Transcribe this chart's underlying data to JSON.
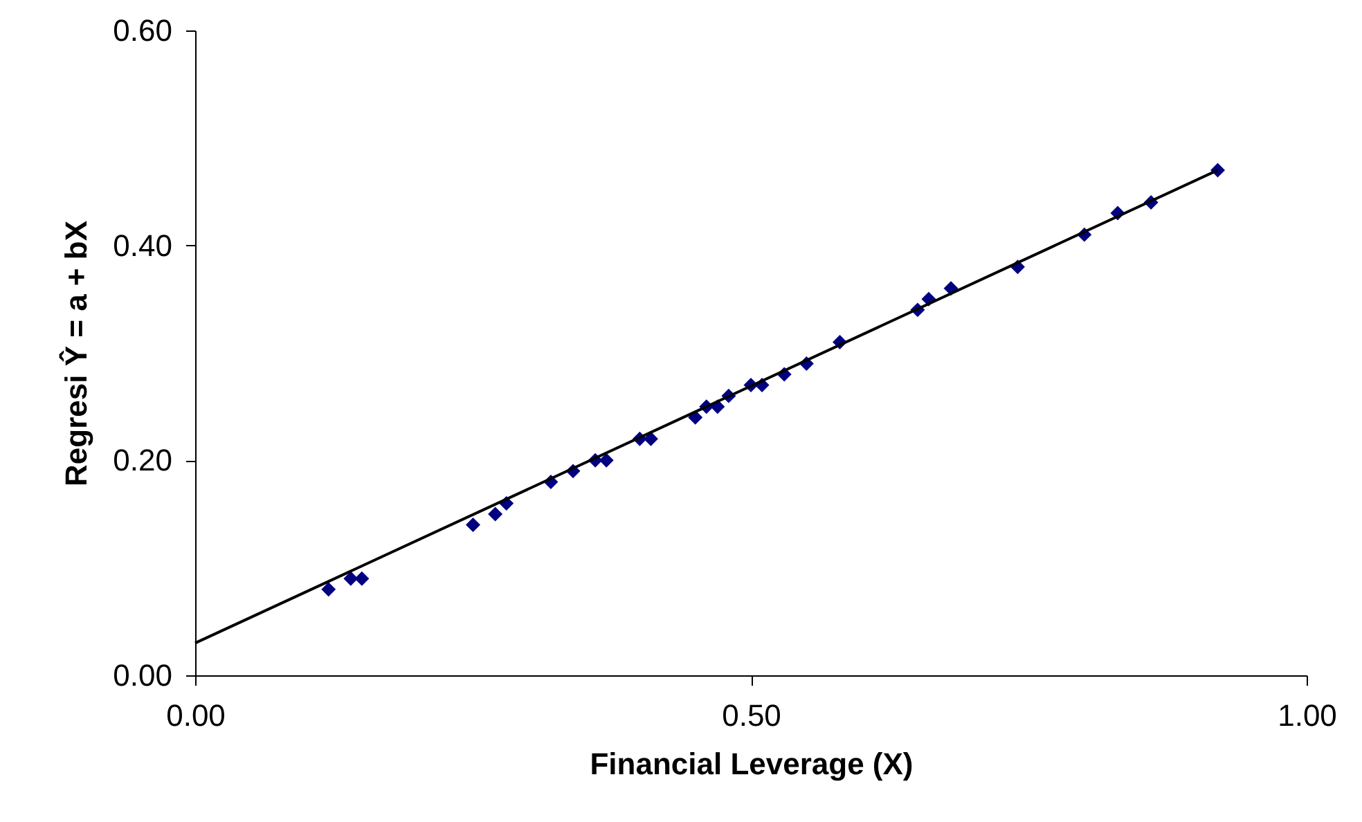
{
  "chart_data": {
    "type": "scatter",
    "xlabel": "Financial Leverage (X)",
    "ylabel": "Regresi Ŷ = a + bX",
    "xlim": [
      0,
      1
    ],
    "xticks": [
      {
        "value": 0,
        "label": "0.00"
      },
      {
        "value": 0.5,
        "label": "0.50"
      },
      {
        "value": 1,
        "label": "1.00"
      }
    ],
    "ylim": [
      0,
      0.6
    ],
    "yticks": [
      {
        "value": 0,
        "label": "0.00"
      },
      {
        "value": 0.2,
        "label": "0.20"
      },
      {
        "value": 0.4,
        "label": "0.40"
      },
      {
        "value": 0.6,
        "label": "0.60"
      }
    ],
    "grid": false,
    "series": [
      {
        "marker": "diamond",
        "color": "#000080",
        "x": [
          0.12,
          0.14,
          0.15,
          0.25,
          0.27,
          0.28,
          0.32,
          0.34,
          0.36,
          0.37,
          0.4,
          0.41,
          0.45,
          0.46,
          0.47,
          0.48,
          0.5,
          0.51,
          0.53,
          0.55,
          0.58,
          0.65,
          0.66,
          0.68,
          0.74,
          0.8,
          0.83,
          0.86,
          0.92
        ],
        "values": [
          0.08,
          0.09,
          0.09,
          0.14,
          0.15,
          0.16,
          0.18,
          0.19,
          0.2,
          0.2,
          0.22,
          0.22,
          0.24,
          0.25,
          0.25,
          0.26,
          0.27,
          0.27,
          0.28,
          0.29,
          0.31,
          0.34,
          0.35,
          0.36,
          0.38,
          0.41,
          0.43,
          0.44,
          0.47
        ]
      },
      {
        "type": "line",
        "marker": "none",
        "color": "#000000",
        "line_style": "solid",
        "x": [
          0,
          0.92
        ],
        "values": [
          0.03,
          0.47
        ]
      }
    ]
  }
}
